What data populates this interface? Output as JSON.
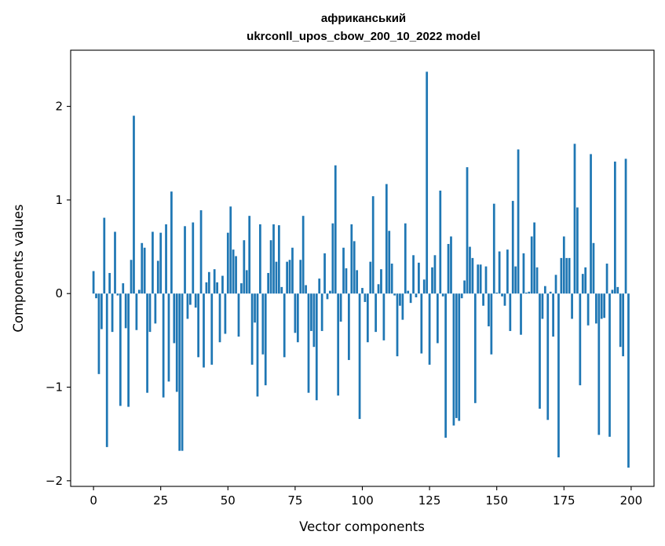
{
  "chart_data": {
    "type": "bar",
    "title_line1": "африканський",
    "title_line2": "ukrconll_upos_cbow_200_10_2022 model",
    "xlabel": "Vector components",
    "ylabel": "Components values",
    "xlim": [
      -8.5,
      208.5
    ],
    "ylim": [
      -2.06,
      2.6
    ],
    "xticks": [
      0,
      25,
      50,
      75,
      100,
      125,
      150,
      175,
      200
    ],
    "xtick_labels": [
      "0",
      "25",
      "50",
      "75",
      "100",
      "125",
      "150",
      "175",
      "200"
    ],
    "yticks": [
      -2,
      -1,
      0,
      1,
      2
    ],
    "ytick_labels": [
      "−2",
      "−1",
      "0",
      "1",
      "2"
    ],
    "bar_color": "#1f77b4",
    "values": [
      0.24,
      -0.05,
      -0.86,
      -0.38,
      0.81,
      -1.64,
      0.22,
      -0.41,
      0.66,
      -0.02,
      -1.2,
      0.11,
      -0.37,
      -1.21,
      0.36,
      1.9,
      -0.39,
      0.04,
      0.54,
      0.49,
      -1.06,
      -0.41,
      0.66,
      -0.32,
      0.35,
      0.65,
      -1.11,
      0.74,
      -0.94,
      1.09,
      -0.53,
      -1.05,
      -1.68,
      -1.68,
      0.72,
      -0.27,
      -0.12,
      0.76,
      -0.15,
      -0.68,
      0.89,
      -0.79,
      0.12,
      0.23,
      -0.76,
      0.26,
      0.12,
      -0.52,
      0.19,
      -0.43,
      0.65,
      0.93,
      0.47,
      0.4,
      -0.46,
      0.11,
      0.57,
      0.25,
      0.83,
      -0.76,
      -0.31,
      -1.1,
      0.74,
      -0.65,
      -0.98,
      0.22,
      0.57,
      0.74,
      0.34,
      0.73,
      0.07,
      -0.68,
      0.34,
      0.36,
      0.49,
      -0.42,
      -0.52,
      0.36,
      0.83,
      0.09,
      -1.06,
      -0.4,
      -0.57,
      -1.14,
      0.16,
      -0.4,
      0.43,
      -0.06,
      0.03,
      0.75,
      1.37,
      -1.09,
      -0.3,
      0.49,
      0.27,
      -0.71,
      0.74,
      0.56,
      0.25,
      -1.34,
      0.06,
      -0.09,
      -0.52,
      0.34,
      1.04,
      -0.41,
      0.1,
      0.26,
      -0.5,
      1.17,
      0.67,
      0.32,
      -0.02,
      -0.67,
      -0.13,
      -0.28,
      0.75,
      0.03,
      -0.1,
      0.41,
      -0.04,
      0.33,
      -0.64,
      0.15,
      2.37,
      -0.76,
      0.28,
      0.41,
      -0.53,
      1.1,
      -0.03,
      -1.54,
      0.53,
      0.61,
      -1.41,
      -1.33,
      -1.36,
      -0.05,
      0.14,
      1.35,
      0.5,
      0.38,
      -1.17,
      0.31,
      0.31,
      -0.13,
      0.29,
      -0.35,
      -0.65,
      0.96,
      0.01,
      0.45,
      -0.03,
      -0.13,
      0.47,
      -0.4,
      0.99,
      0.29,
      1.54,
      -0.44,
      0.43,
      0.01,
      0.02,
      0.61,
      0.76,
      0.28,
      -1.23,
      -0.27,
      0.08,
      -1.35,
      0.02,
      -0.46,
      0.2,
      -1.75,
      0.38,
      0.61,
      0.38,
      0.38,
      -0.27,
      1.6,
      0.92,
      -0.98,
      0.21,
      0.28,
      -0.34,
      1.49,
      0.54,
      -0.32,
      -1.51,
      -0.27,
      -0.26,
      0.32,
      -1.53,
      0.04,
      1.41,
      0.07,
      -0.57,
      -0.67,
      1.44,
      -1.86
    ]
  }
}
